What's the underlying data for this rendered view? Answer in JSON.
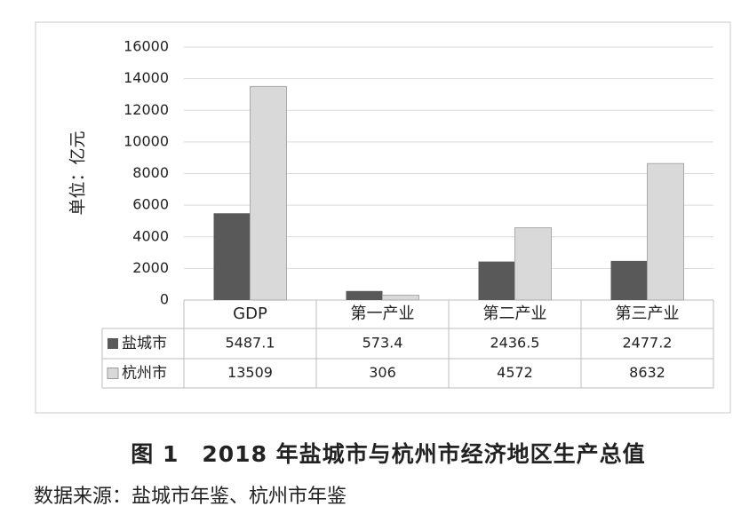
{
  "chart_data": {
    "type": "bar",
    "y_label": "单位：亿元",
    "categories": [
      "GDP",
      "第一产业",
      "第二产业",
      "第三产业"
    ],
    "series": [
      {
        "name": "盐城市",
        "color": "#595959",
        "values": [
          5487.1,
          573.4,
          2436.5,
          2477.2
        ]
      },
      {
        "name": "杭州市",
        "color": "#d9d9d9",
        "values": [
          13509,
          306,
          4572,
          8632
        ]
      }
    ],
    "ylim": [
      0,
      16000
    ],
    "yticks": [
      0,
      2000,
      4000,
      6000,
      8000,
      10000,
      12000,
      14000,
      16000
    ],
    "grid": true,
    "caption": "图 1　2018 年盐城市与杭州市经济地区生产总值",
    "source": "数据来源：盐城市年鉴、杭州市年鉴"
  }
}
